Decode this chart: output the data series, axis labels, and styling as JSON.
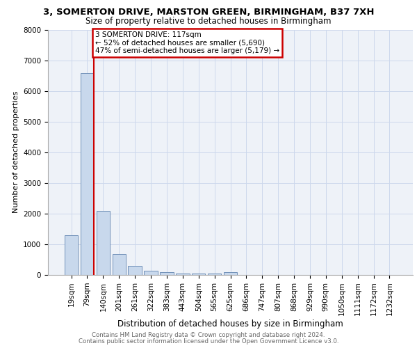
{
  "title_line1": "3, SOMERTON DRIVE, MARSTON GREEN, BIRMINGHAM, B37 7XH",
  "title_line2": "Size of property relative to detached houses in Birmingham",
  "xlabel": "Distribution of detached houses by size in Birmingham",
  "ylabel": "Number of detached properties",
  "categories": [
    "19sqm",
    "79sqm",
    "140sqm",
    "201sqm",
    "261sqm",
    "322sqm",
    "383sqm",
    "443sqm",
    "504sqm",
    "565sqm",
    "625sqm",
    "686sqm",
    "747sqm",
    "807sqm",
    "868sqm",
    "929sqm",
    "990sqm",
    "1050sqm",
    "1111sqm",
    "1172sqm",
    "1232sqm"
  ],
  "values": [
    1300,
    6580,
    2080,
    670,
    300,
    130,
    80,
    55,
    45,
    40,
    85,
    0,
    0,
    0,
    0,
    0,
    0,
    0,
    0,
    0,
    0
  ],
  "bar_color": "#c8d8ec",
  "bar_edge_color": "#7090b8",
  "annotation_text": "3 SOMERTON DRIVE: 117sqm\n← 52% of detached houses are smaller (5,690)\n47% of semi-detached houses are larger (5,179) →",
  "annotation_box_color": "white",
  "annotation_box_edge_color": "#cc0000",
  "red_line_color": "#cc0000",
  "ylim": [
    0,
    8000
  ],
  "yticks": [
    0,
    1000,
    2000,
    3000,
    4000,
    5000,
    6000,
    7000,
    8000
  ],
  "grid_color": "#ccd8ec",
  "background_color": "#eef2f8",
  "footer_line1": "Contains HM Land Registry data © Crown copyright and database right 2024.",
  "footer_line2": "Contains public sector information licensed under the Open Government Licence v3.0."
}
